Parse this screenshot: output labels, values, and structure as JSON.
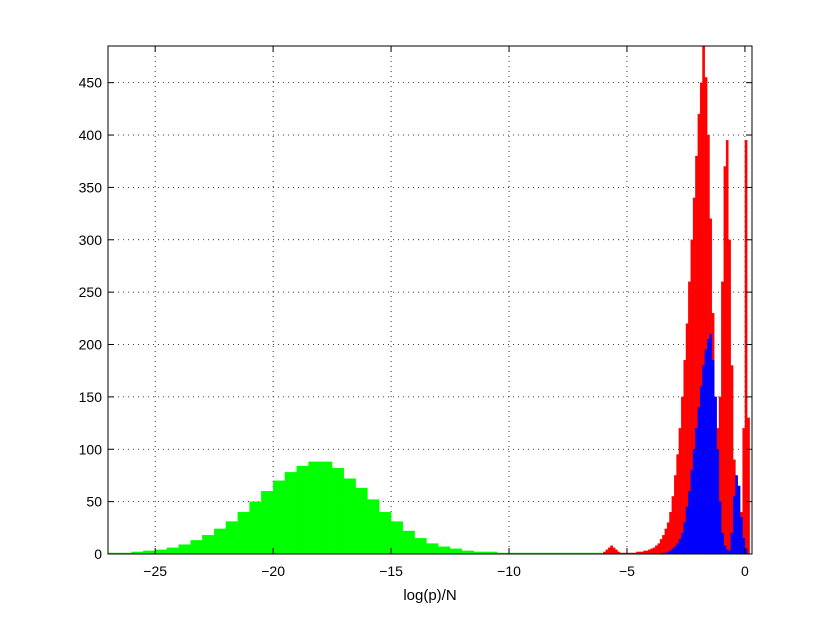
{
  "chart_data": {
    "type": "bar",
    "title": "",
    "xlabel": "log(p)/N",
    "ylabel": "",
    "xlim": [
      -27,
      0.3
    ],
    "ylim": [
      0,
      485
    ],
    "grid": true,
    "legend": "none",
    "x_ticks": [
      -25,
      -20,
      -15,
      -10,
      -5,
      0
    ],
    "x_tick_labels": [
      "−25",
      "−20",
      "−15",
      "−10",
      "−5",
      "0"
    ],
    "y_ticks": [
      0,
      50,
      100,
      150,
      200,
      250,
      300,
      350,
      400,
      450
    ],
    "y_tick_labels": [
      "0",
      "50",
      "100",
      "150",
      "200",
      "250",
      "300",
      "350",
      "400",
      "450"
    ],
    "series": [
      {
        "color": "#00ff00",
        "bin_width": 0.5,
        "x": [
          -27,
          -26.5,
          -26,
          -25.5,
          -25,
          -24.5,
          -24,
          -23.5,
          -23,
          -22.5,
          -22,
          -21.5,
          -21,
          -20.5,
          -20,
          -19.5,
          -19,
          -18.5,
          -18,
          -17.5,
          -17,
          -16.5,
          -16,
          -15.5,
          -15,
          -14.5,
          -14,
          -13.5,
          -13,
          -12.5,
          -12,
          -11.5,
          -11,
          -10.5,
          -10,
          -9.5,
          -9,
          -8.5,
          -8,
          -7.5,
          -7,
          -6.5
        ],
        "values": [
          1,
          1,
          2,
          3,
          4,
          6,
          9,
          13,
          18,
          24,
          31,
          40,
          50,
          60,
          70,
          78,
          84,
          88,
          88,
          82,
          72,
          63,
          52,
          40,
          31,
          22,
          15,
          10,
          7,
          5,
          3,
          2,
          2,
          1,
          1,
          1,
          1,
          1,
          1,
          1,
          1,
          1
        ]
      },
      {
        "color": "#ff0000",
        "bin_width": 0.1,
        "x": [
          -6.0,
          -5.9,
          -5.8,
          -5.7,
          -5.6,
          -5.5,
          -5.4,
          -5.3,
          -5.2,
          -5.1,
          -5.0,
          -4.9,
          -4.8,
          -4.7,
          -4.6,
          -4.5,
          -4.4,
          -4.3,
          -4.2,
          -4.1,
          -4.0,
          -3.9,
          -3.8,
          -3.7,
          -3.6,
          -3.5,
          -3.4,
          -3.3,
          -3.2,
          -3.1,
          -3.0,
          -2.9,
          -2.8,
          -2.7,
          -2.6,
          -2.5,
          -2.4,
          -2.3,
          -2.2,
          -2.1,
          -2.0,
          -1.9,
          -1.8,
          -1.7,
          -1.6,
          -1.5,
          -1.4,
          -1.3,
          -1.2,
          -1.1,
          -1.0,
          -0.9,
          -0.8,
          -0.7,
          -0.6,
          -0.5,
          -0.4,
          -0.3,
          -0.2,
          -0.1,
          0.0,
          0.1
        ],
        "values": [
          2,
          4,
          6,
          8,
          6,
          4,
          2,
          1,
          1,
          1,
          1,
          1,
          1,
          1,
          2,
          2,
          2,
          3,
          3,
          4,
          5,
          6,
          8,
          10,
          14,
          18,
          24,
          30,
          40,
          55,
          75,
          95,
          120,
          150,
          185,
          220,
          260,
          300,
          340,
          380,
          420,
          450,
          485,
          455,
          400,
          320,
          230,
          150,
          120,
          150,
          260,
          370,
          395,
          300,
          180,
          90,
          40,
          20,
          40,
          120,
          395,
          130
        ]
      },
      {
        "color": "#0000ff",
        "bin_width": 0.1,
        "x": [
          -3.5,
          -3.4,
          -3.3,
          -3.2,
          -3.1,
          -3.0,
          -2.9,
          -2.8,
          -2.7,
          -2.6,
          -2.5,
          -2.4,
          -2.3,
          -2.2,
          -2.1,
          -2.0,
          -1.9,
          -1.8,
          -1.7,
          -1.6,
          -1.5,
          -1.4,
          -1.3,
          -1.2,
          -1.1,
          -1.0,
          -0.9,
          -0.8,
          -0.7,
          -0.6,
          -0.5,
          -0.4,
          -0.3,
          -0.2,
          -0.1,
          0.0
        ],
        "values": [
          1,
          1,
          2,
          3,
          5,
          7,
          10,
          14,
          20,
          30,
          45,
          60,
          80,
          100,
          120,
          140,
          160,
          180,
          195,
          205,
          210,
          185,
          150,
          100,
          50,
          20,
          8,
          4,
          3,
          20,
          55,
          75,
          65,
          35,
          15,
          5
        ]
      }
    ]
  }
}
